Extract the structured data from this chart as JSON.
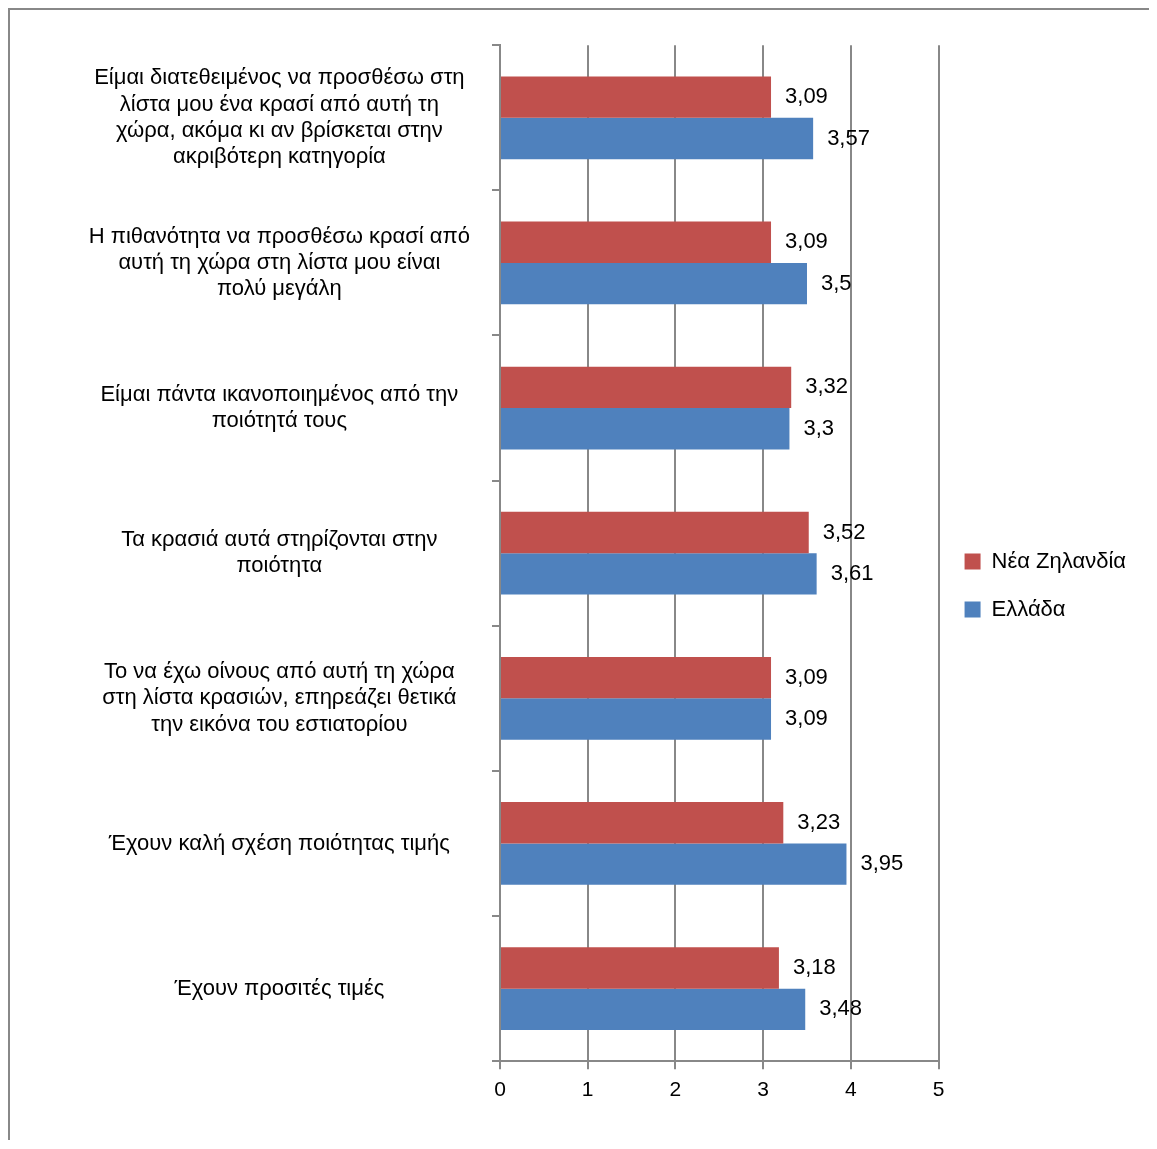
{
  "chart_data": {
    "type": "bar",
    "orientation": "horizontal",
    "categories": [
      "Είμαι διατεθειμένος να προσθέσω στη λίστα μου ένα κρασί από αυτή τη χώρα, ακόμα κι αν βρίσκεται στην ακριβότερη κατηγορία",
      "Η πιθανότητα να προσθέσω κρασί από αυτή τη χώρα στη λίστα μου είναι πολύ μεγάλη",
      "Είμαι πάντα ικανοποιημένος από την ποιότητά τους",
      "Τα κρασιά αυτά στηρίζονται στην ποιότητα",
      "Το να έχω οίνους από αυτή τη χώρα στη λίστα κρασιών, επηρεάζει θετικά την εικόνα του εστιατορίου",
      "Έχουν καλή σχέση ποιότητας τιμής",
      "Έχουν προσιτές τιμές"
    ],
    "series": [
      {
        "name": "Νέα Ζηλανδία",
        "color": "#c0504d",
        "values": [
          3.09,
          3.09,
          3.32,
          3.52,
          3.09,
          3.23,
          3.18
        ],
        "value_labels": [
          "3,09",
          "3,09",
          "3,32",
          "3,52",
          "3,09",
          "3,23",
          "3,18"
        ]
      },
      {
        "name": "Ελλάδα",
        "color": "#4f81bd",
        "values": [
          3.57,
          3.5,
          3.3,
          3.61,
          3.09,
          3.95,
          3.48
        ],
        "value_labels": [
          "3,57",
          "3,5",
          "3,3",
          "3,61",
          "3,09",
          "3,95",
          "3,48"
        ]
      }
    ],
    "xlim": [
      0,
      5
    ],
    "xticks": [
      0,
      1,
      2,
      3,
      4,
      5
    ],
    "grid": "x",
    "legend": "right"
  }
}
